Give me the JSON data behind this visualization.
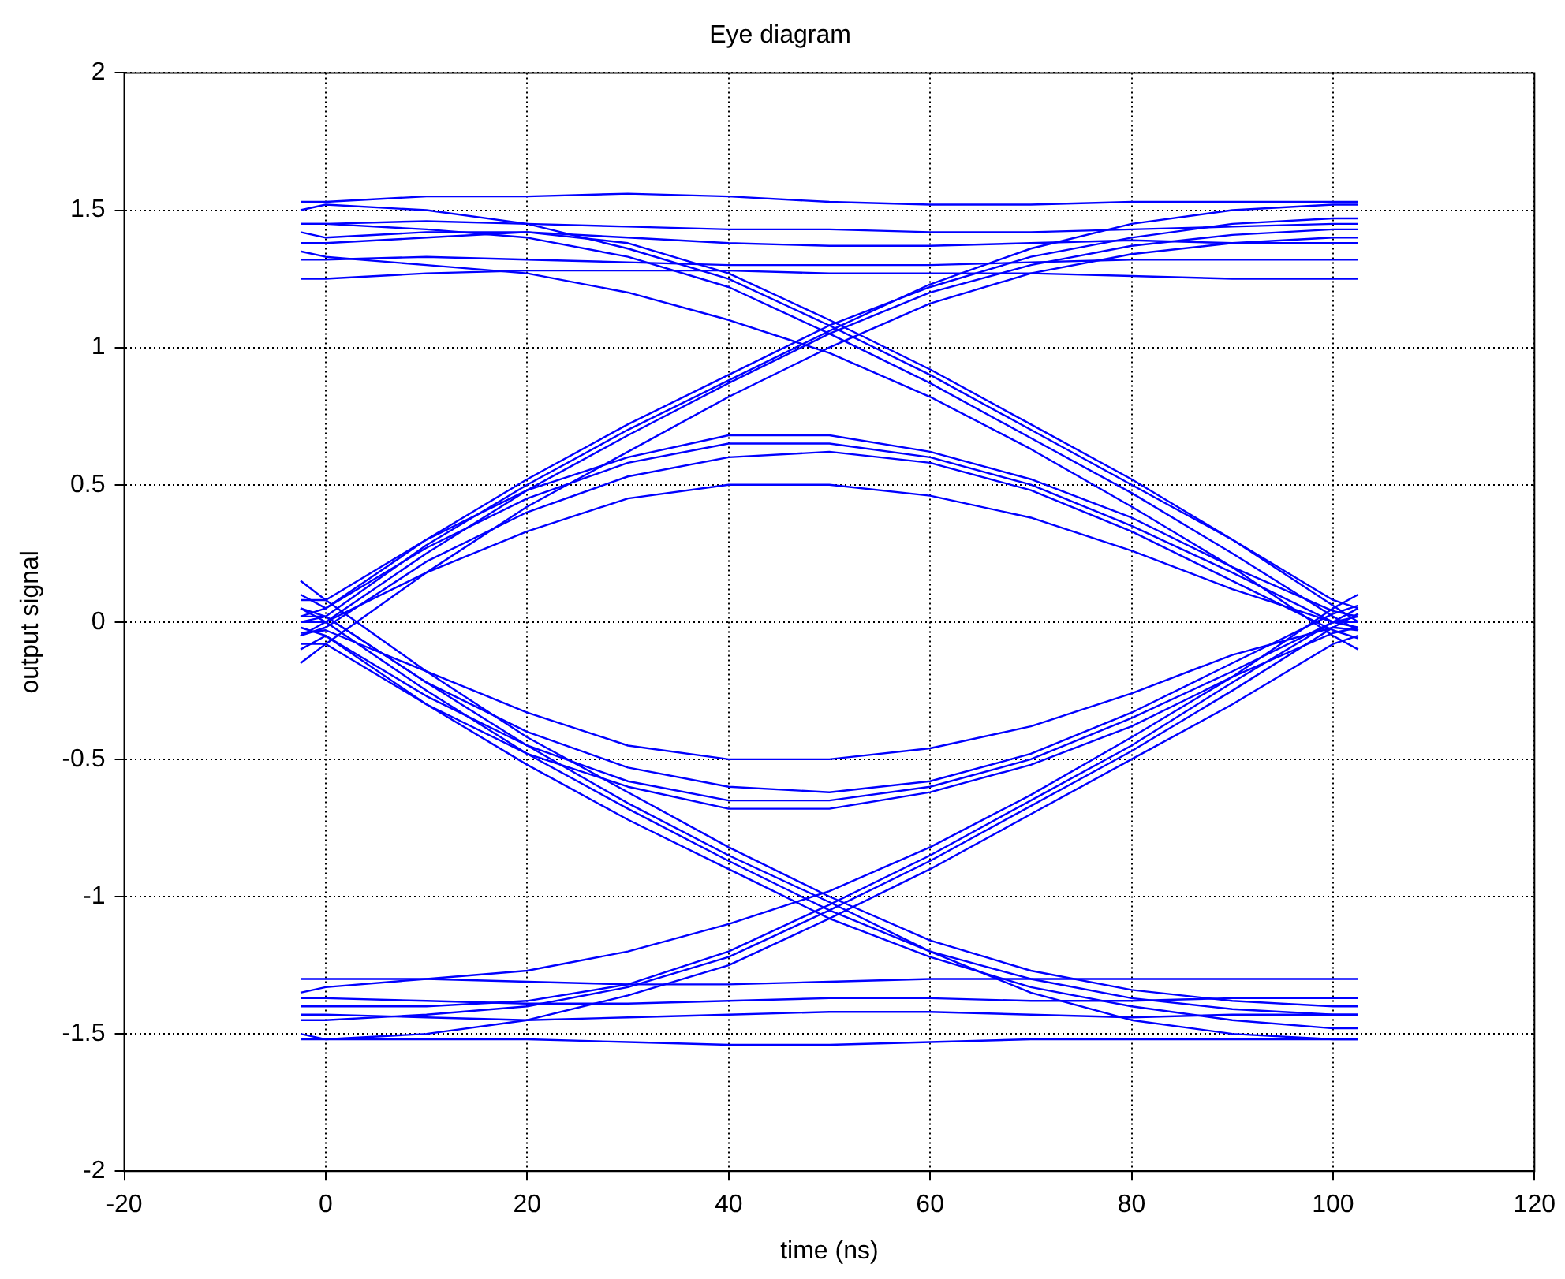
{
  "chart_data": {
    "type": "line",
    "title": "Eye diagram",
    "xlabel": "time (ns)",
    "ylabel": "output signal",
    "x": [
      -2.5,
      0,
      10,
      20,
      30,
      40,
      50,
      60,
      70,
      80,
      90,
      100,
      102.5
    ],
    "xlim": [
      -20,
      120
    ],
    "xticks": [
      -20,
      0,
      20,
      40,
      60,
      80,
      100,
      120
    ],
    "ylim": [
      -2,
      2
    ],
    "yticks": [
      -2,
      -1.5,
      -1,
      -0.5,
      0,
      0.5,
      1,
      1.5,
      2
    ],
    "grid": true,
    "series": [
      {
        "color": "#0000ff",
        "values": [
          -0.05,
          0,
          0.25,
          0.48,
          0.68,
          0.87,
          1.05,
          1.2,
          1.3,
          1.37,
          1.41,
          1.43,
          1.43
        ]
      },
      {
        "color": "#0000ff",
        "values": [
          0.1,
          0.05,
          0.3,
          0.52,
          0.72,
          0.9,
          1.08,
          1.22,
          1.33,
          1.4,
          1.45,
          1.47,
          1.47
        ]
      },
      {
        "color": "#0000ff",
        "values": [
          -0.15,
          -0.08,
          0.18,
          0.42,
          0.62,
          0.82,
          1.0,
          1.16,
          1.27,
          1.34,
          1.38,
          1.4,
          1.4
        ]
      },
      {
        "color": "#0000ff",
        "values": [
          0.0,
          0.02,
          0.28,
          0.5,
          0.7,
          0.88,
          1.06,
          1.23,
          1.36,
          1.45,
          1.5,
          1.52,
          1.52
        ]
      },
      {
        "color": "#0000ff",
        "values": [
          1.45,
          1.45,
          1.43,
          1.4,
          1.33,
          1.22,
          1.05,
          0.87,
          0.67,
          0.47,
          0.25,
          0.02,
          -0.03
        ]
      },
      {
        "color": "#0000ff",
        "values": [
          1.5,
          1.52,
          1.5,
          1.45,
          1.36,
          1.25,
          1.08,
          0.9,
          0.7,
          0.5,
          0.3,
          0.08,
          0.05
        ]
      },
      {
        "color": "#0000ff",
        "values": [
          1.35,
          1.33,
          1.3,
          1.27,
          1.2,
          1.1,
          0.98,
          0.82,
          0.63,
          0.42,
          0.2,
          -0.05,
          -0.1
        ]
      },
      {
        "color": "#0000ff",
        "values": [
          1.42,
          1.4,
          1.42,
          1.42,
          1.38,
          1.27,
          1.1,
          0.92,
          0.72,
          0.52,
          0.3,
          0.06,
          0.0
        ]
      },
      {
        "color": "#0000ff",
        "values": [
          0.05,
          0,
          -0.25,
          -0.48,
          -0.68,
          -0.87,
          -1.05,
          -1.2,
          -1.3,
          -1.37,
          -1.41,
          -1.43,
          -1.43
        ]
      },
      {
        "color": "#0000ff",
        "values": [
          -0.1,
          -0.05,
          -0.3,
          -0.52,
          -0.72,
          -0.9,
          -1.08,
          -1.22,
          -1.33,
          -1.4,
          -1.45,
          -1.48,
          -1.48
        ]
      },
      {
        "color": "#0000ff",
        "values": [
          0.15,
          0.08,
          -0.18,
          -0.42,
          -0.62,
          -0.82,
          -1.0,
          -1.16,
          -1.27,
          -1.34,
          -1.38,
          -1.4,
          -1.4
        ]
      },
      {
        "color": "#0000ff",
        "values": [
          0.02,
          0.02,
          -0.22,
          -0.45,
          -0.66,
          -0.85,
          -1.02,
          -1.2,
          -1.35,
          -1.45,
          -1.5,
          -1.52,
          -1.52
        ]
      },
      {
        "color": "#0000ff",
        "values": [
          -1.45,
          -1.45,
          -1.43,
          -1.4,
          -1.33,
          -1.22,
          -1.05,
          -0.87,
          -0.67,
          -0.47,
          -0.25,
          -0.02,
          0.03
        ]
      },
      {
        "color": "#0000ff",
        "values": [
          -1.5,
          -1.52,
          -1.5,
          -1.45,
          -1.36,
          -1.25,
          -1.08,
          -0.9,
          -0.7,
          -0.5,
          -0.3,
          -0.08,
          -0.05
        ]
      },
      {
        "color": "#0000ff",
        "values": [
          -1.35,
          -1.33,
          -1.3,
          -1.27,
          -1.2,
          -1.1,
          -0.98,
          -0.82,
          -0.63,
          -0.42,
          -0.2,
          0.05,
          0.1
        ]
      },
      {
        "color": "#0000ff",
        "values": [
          -1.4,
          -1.4,
          -1.4,
          -1.38,
          -1.32,
          -1.2,
          -1.03,
          -0.85,
          -0.65,
          -0.45,
          -0.22,
          0.0,
          0.05
        ]
      },
      {
        "color": "#0000ff",
        "values": [
          0.02,
          0.05,
          0.27,
          0.45,
          0.58,
          0.65,
          0.65,
          0.6,
          0.5,
          0.35,
          0.18,
          0.0,
          -0.02
        ]
      },
      {
        "color": "#0000ff",
        "values": [
          -0.05,
          -0.02,
          0.22,
          0.4,
          0.53,
          0.6,
          0.62,
          0.58,
          0.48,
          0.33,
          0.15,
          -0.03,
          -0.06
        ]
      },
      {
        "color": "#0000ff",
        "values": [
          0.0,
          0.0,
          0.18,
          0.33,
          0.45,
          0.5,
          0.5,
          0.46,
          0.38,
          0.26,
          0.12,
          0.0,
          0.0
        ]
      },
      {
        "color": "#0000ff",
        "values": [
          0.08,
          0.08,
          0.3,
          0.48,
          0.6,
          0.68,
          0.68,
          0.62,
          0.52,
          0.38,
          0.2,
          0.04,
          0.02
        ]
      },
      {
        "color": "#0000ff",
        "values": [
          -0.02,
          -0.05,
          -0.27,
          -0.45,
          -0.58,
          -0.65,
          -0.65,
          -0.6,
          -0.5,
          -0.35,
          -0.18,
          0.0,
          0.02
        ]
      },
      {
        "color": "#0000ff",
        "values": [
          0.05,
          0.02,
          -0.22,
          -0.4,
          -0.53,
          -0.6,
          -0.62,
          -0.58,
          -0.48,
          -0.33,
          -0.15,
          0.03,
          0.06
        ]
      },
      {
        "color": "#0000ff",
        "values": [
          -0.04,
          -0.03,
          -0.18,
          -0.33,
          -0.45,
          -0.5,
          -0.5,
          -0.46,
          -0.38,
          -0.26,
          -0.12,
          -0.02,
          -0.03
        ]
      },
      {
        "color": "#0000ff",
        "values": [
          -0.08,
          -0.08,
          -0.3,
          -0.48,
          -0.6,
          -0.68,
          -0.68,
          -0.62,
          -0.52,
          -0.38,
          -0.2,
          -0.04,
          -0.02
        ]
      },
      {
        "color": "#0000ff",
        "values": [
          1.53,
          1.53,
          1.55,
          1.55,
          1.56,
          1.55,
          1.53,
          1.52,
          1.52,
          1.53,
          1.53,
          1.53,
          1.53
        ]
      },
      {
        "color": "#0000ff",
        "values": [
          1.45,
          1.45,
          1.46,
          1.45,
          1.44,
          1.43,
          1.43,
          1.42,
          1.42,
          1.43,
          1.44,
          1.45,
          1.45
        ]
      },
      {
        "color": "#0000ff",
        "values": [
          1.32,
          1.32,
          1.33,
          1.32,
          1.31,
          1.3,
          1.3,
          1.3,
          1.31,
          1.32,
          1.32,
          1.32,
          1.32
        ]
      },
      {
        "color": "#0000ff",
        "values": [
          1.25,
          1.25,
          1.27,
          1.28,
          1.28,
          1.28,
          1.27,
          1.27,
          1.27,
          1.26,
          1.25,
          1.25,
          1.25
        ]
      },
      {
        "color": "#0000ff",
        "values": [
          1.38,
          1.38,
          1.4,
          1.42,
          1.4,
          1.38,
          1.37,
          1.37,
          1.38,
          1.39,
          1.38,
          1.38,
          1.38
        ]
      },
      {
        "color": "#0000ff",
        "values": [
          -1.52,
          -1.52,
          -1.52,
          -1.52,
          -1.53,
          -1.54,
          -1.54,
          -1.53,
          -1.52,
          -1.52,
          -1.52,
          -1.52,
          -1.52
        ]
      },
      {
        "color": "#0000ff",
        "values": [
          -1.43,
          -1.43,
          -1.44,
          -1.45,
          -1.44,
          -1.43,
          -1.42,
          -1.42,
          -1.43,
          -1.44,
          -1.43,
          -1.43,
          -1.43
        ]
      },
      {
        "color": "#0000ff",
        "values": [
          -1.3,
          -1.3,
          -1.3,
          -1.31,
          -1.32,
          -1.32,
          -1.31,
          -1.3,
          -1.3,
          -1.3,
          -1.3,
          -1.3,
          -1.3
        ]
      },
      {
        "color": "#0000ff",
        "values": [
          -1.37,
          -1.37,
          -1.38,
          -1.39,
          -1.39,
          -1.38,
          -1.37,
          -1.37,
          -1.38,
          -1.38,
          -1.37,
          -1.37,
          -1.37
        ]
      }
    ]
  }
}
